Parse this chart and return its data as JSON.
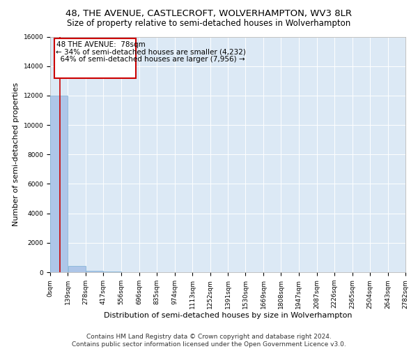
{
  "title_line1": "48, THE AVENUE, CASTLECROFT, WOLVERHAMPTON, WV3 8LR",
  "title_line2": "Size of property relative to semi-detached houses in Wolverhampton",
  "xlabel": "Distribution of semi-detached houses by size in Wolverhampton",
  "ylabel": "Number of semi-detached properties",
  "property_size_sqm": 78,
  "property_label": "48 THE AVENUE: 78sqm",
  "pct_smaller": 34,
  "pct_larger": 64,
  "n_smaller": 4232,
  "n_larger": 7956,
  "bin_edges": [
    0,
    139,
    278,
    417,
    556,
    696,
    835,
    974,
    1113,
    1252,
    1391,
    1530,
    1669,
    1808,
    1947,
    2087,
    2226,
    2365,
    2504,
    2643,
    2782
  ],
  "bin_counts": [
    12000,
    450,
    80,
    30,
    15,
    8,
    5,
    3,
    2,
    2,
    1,
    1,
    1,
    1,
    0,
    0,
    0,
    0,
    0,
    0
  ],
  "bar_color": "#aec6e8",
  "bar_edgecolor": "#7aafd4",
  "vline_color": "#cc0000",
  "annotation_box_edgecolor": "#cc0000",
  "annotation_box_facecolor": "#ffffff",
  "background_color": "#dce9f5",
  "ylim": [
    0,
    16000
  ],
  "yticks": [
    0,
    2000,
    4000,
    6000,
    8000,
    10000,
    12000,
    14000,
    16000
  ],
  "tick_labels": [
    "0sqm",
    "139sqm",
    "278sqm",
    "417sqm",
    "556sqm",
    "696sqm",
    "835sqm",
    "974sqm",
    "1113sqm",
    "1252sqm",
    "1391sqm",
    "1530sqm",
    "1669sqm",
    "1808sqm",
    "1947sqm",
    "2087sqm",
    "2226sqm",
    "2365sqm",
    "2504sqm",
    "2643sqm",
    "2782sqm"
  ],
  "footer_line1": "Contains HM Land Registry data © Crown copyright and database right 2024.",
  "footer_line2": "Contains public sector information licensed under the Open Government Licence v3.0.",
  "title_fontsize": 9.5,
  "subtitle_fontsize": 8.5,
  "axis_label_fontsize": 8,
  "tick_fontsize": 6.5,
  "annotation_fontsize": 7.5,
  "footer_fontsize": 6.5
}
